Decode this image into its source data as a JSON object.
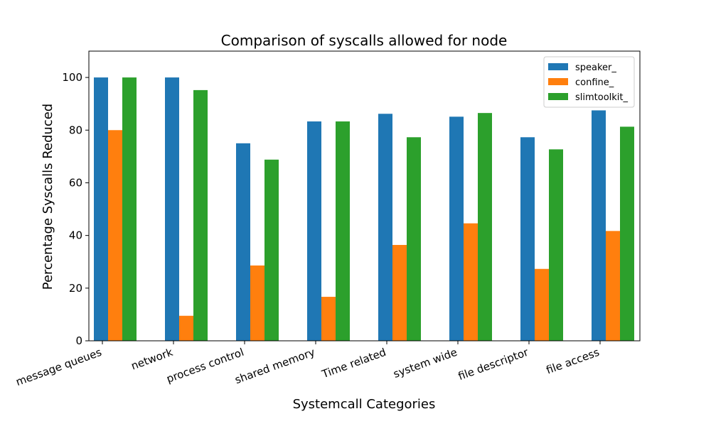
{
  "chart_data": {
    "type": "bar",
    "title": "Comparison of syscalls allowed for node",
    "xlabel": "Systemcall Categories",
    "ylabel": "Percentage Syscalls Reduced",
    "ylim": [
      0,
      110
    ],
    "yticks": [
      0,
      20,
      40,
      60,
      80,
      100
    ],
    "grid": false,
    "legend_position": "top-right",
    "categories": [
      "message queues",
      "network",
      "process control",
      "shared memory",
      "Time related",
      "system wide",
      "file descriptor",
      "file access"
    ],
    "series": [
      {
        "name": "speaker_",
        "color": "#1f77b4",
        "values": [
          100,
          100,
          75,
          83.3,
          86.2,
          85.1,
          77.3,
          87.5
        ]
      },
      {
        "name": "confine_",
        "color": "#ff7f0e",
        "values": [
          80,
          9.5,
          28.6,
          16.7,
          36.4,
          44.6,
          27.3,
          41.7
        ]
      },
      {
        "name": "slimtoolkit_",
        "color": "#2ca02c",
        "values": [
          100,
          95.2,
          68.8,
          83.3,
          77.3,
          86.5,
          72.7,
          81.3
        ]
      }
    ]
  }
}
